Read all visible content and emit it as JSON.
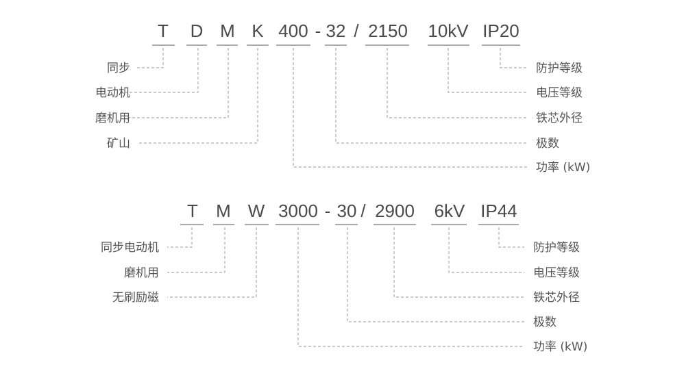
{
  "diagram1": {
    "tokens": [
      "T",
      "D",
      "M",
      "K",
      "400",
      "-",
      "32",
      "/",
      "2150",
      "10kV",
      "IP20"
    ],
    "left_labels": [
      "同步",
      "电动机",
      "磨机用",
      "矿山"
    ],
    "right_labels": [
      "防护等级",
      "电压等级",
      "铁芯外径",
      "极数",
      "功率 (kW)"
    ]
  },
  "diagram2": {
    "tokens": [
      "T",
      "M",
      "W",
      "3000",
      "-",
      "30",
      "/",
      "2900",
      "6kV",
      "IP44"
    ],
    "left_labels": [
      "同步电动机",
      "磨机用",
      "无刷励磁"
    ],
    "right_labels": [
      "防护等级",
      "电压等级",
      "铁芯外径",
      "极数",
      "功率 (kW)"
    ]
  }
}
